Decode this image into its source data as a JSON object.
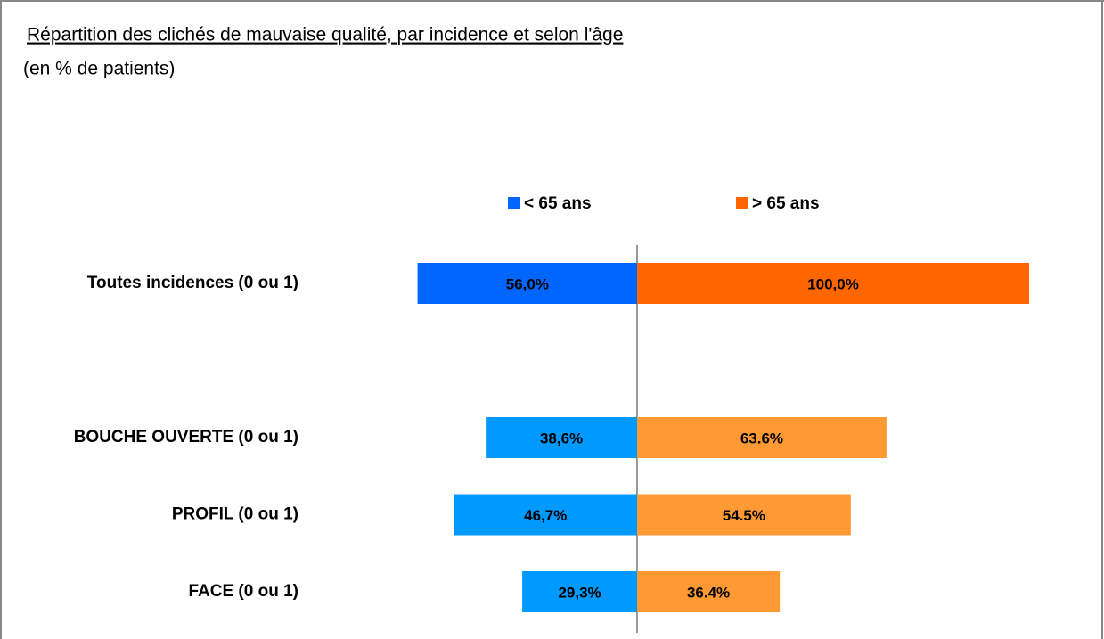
{
  "chart_data": {
    "type": "butterfly",
    "title": "Répartition des clichés de mauvaise qualité, par incidence et selon l'âge",
    "subtitle": "(en % de patients)",
    "categories": [
      "Toutes incidences  (0 ou 1)",
      null,
      "BOUCHE OUVERTE (0 ou 1)",
      "PROFIL (0 ou 1)",
      "FACE (0 ou 1)"
    ],
    "series": [
      {
        "name": "< 65 ans",
        "color": "#0066ff",
        "point_colors": [
          "#0066ff",
          null,
          "#0099ff",
          "#0099ff",
          "#0099ff"
        ],
        "values": [
          56.0,
          null,
          38.6,
          46.7,
          29.3
        ],
        "value_labels": [
          "56,0%",
          null,
          "38,6%",
          "46,7%",
          "29,3%"
        ]
      },
      {
        "name": "> 65 ans",
        "color": "#ff6600",
        "point_colors": [
          "#ff6600",
          null,
          "#ff9933",
          "#ff9933",
          "#ff9933"
        ],
        "values": [
          100.0,
          null,
          63.6,
          54.5,
          36.4
        ],
        "value_labels": [
          "100,0%",
          null,
          "63.6%",
          "54.5%",
          "36.4%"
        ]
      }
    ]
  }
}
